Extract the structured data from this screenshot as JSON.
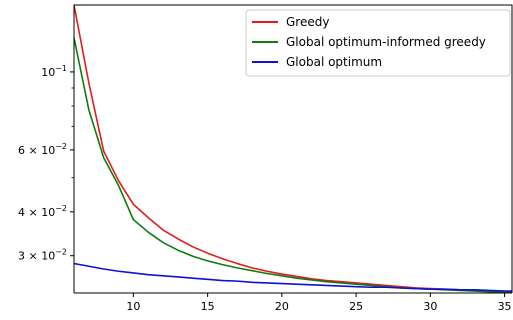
{
  "chart_data": {
    "type": "line",
    "title": "",
    "xlabel": "",
    "ylabel": "",
    "xlim": [
      6,
      35.5
    ],
    "ylim": [
      0.0235,
      0.155
    ],
    "yscale": "log",
    "grid": false,
    "legend_position": "top-right",
    "x_ticks": [
      {
        "value": 10,
        "label": "10"
      },
      {
        "value": 15,
        "label": "15"
      },
      {
        "value": 20,
        "label": "20"
      },
      {
        "value": 25,
        "label": "25"
      },
      {
        "value": 30,
        "label": "30"
      },
      {
        "value": 35,
        "label": "35"
      }
    ],
    "y_ticks": [
      {
        "value": 0.1,
        "mantissa": "10",
        "exponent": "−1"
      },
      {
        "value": 0.06,
        "mantissa": "6 × 10",
        "exponent": "−2"
      },
      {
        "value": 0.04,
        "mantissa": "4 × 10",
        "exponent": "−2"
      },
      {
        "value": 0.03,
        "mantissa": "3 × 10",
        "exponent": "−2"
      }
    ],
    "y_minor_ticks": [
      0.05,
      0.07,
      0.08,
      0.09
    ],
    "x": [
      6,
      7,
      8,
      9,
      10,
      11,
      12,
      13,
      14,
      15,
      16,
      17,
      18,
      19,
      20,
      21,
      22,
      23,
      24,
      25,
      26,
      27,
      28,
      29,
      30,
      31,
      32,
      33,
      34,
      35,
      35.5
    ],
    "series": [
      {
        "name": "Greedy",
        "color": "#e41a1c",
        "values": [
          0.155,
          0.093,
          0.0595,
          0.049,
          0.042,
          0.0385,
          0.0355,
          0.0335,
          0.0318,
          0.0305,
          0.0294,
          0.0285,
          0.0277,
          0.0271,
          0.0266,
          0.0262,
          0.0258,
          0.0255,
          0.0253,
          0.0251,
          0.0249,
          0.0247,
          0.0245,
          0.0243,
          0.0242,
          0.0241,
          0.024,
          0.0239,
          0.0238,
          0.0237,
          0.0236
        ]
      },
      {
        "name": "Global optimum-informed greedy",
        "color": "#0e7d0e",
        "values": [
          0.125,
          0.078,
          0.057,
          0.0475,
          0.038,
          0.035,
          0.0327,
          0.0311,
          0.0299,
          0.029,
          0.0283,
          0.0277,
          0.0272,
          0.0267,
          0.0263,
          0.0259,
          0.0256,
          0.0253,
          0.0251,
          0.0249,
          0.0247,
          0.0245,
          0.0243,
          0.0242,
          0.0241,
          0.024,
          0.0239,
          0.0238,
          0.0237,
          0.0236,
          0.0235
        ]
      },
      {
        "name": "Global optimum",
        "color": "#1010d8",
        "values": [
          0.0285,
          0.028,
          0.0275,
          0.0271,
          0.0268,
          0.0265,
          0.0263,
          0.0261,
          0.0259,
          0.0257,
          0.0255,
          0.0254,
          0.0252,
          0.0251,
          0.025,
          0.0249,
          0.0248,
          0.0247,
          0.0246,
          0.0245,
          0.0244,
          0.0244,
          0.0243,
          0.0242,
          0.0241,
          0.0241,
          0.024,
          0.024,
          0.0239,
          0.0238,
          0.0238
        ]
      }
    ]
  }
}
